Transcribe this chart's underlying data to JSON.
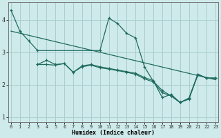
{
  "xlabel": "Humidex (Indice chaleur)",
  "background_color": "#ceeaea",
  "grid_color": "#aacece",
  "line_color": "#1e6b5e",
  "series": {
    "line1": {
      "x": [
        0,
        1,
        2,
        3,
        10,
        11,
        12,
        13,
        14,
        15,
        16,
        17,
        18,
        19,
        20,
        21,
        22,
        23
      ],
      "y": [
        4.3,
        3.65,
        3.35,
        3.05,
        3.05,
        4.05,
        3.88,
        3.58,
        3.44,
        2.55,
        2.1,
        1.82,
        1.65,
        1.45,
        1.58,
        2.32,
        2.2,
        2.2
      ]
    },
    "line2_straight": {
      "x": [
        0,
        23
      ],
      "y": [
        3.65,
        2.15
      ]
    },
    "line3_wavy": {
      "x": [
        3,
        4,
        5,
        6,
        7,
        8,
        9,
        10,
        11,
        12,
        13,
        14,
        15,
        16,
        17,
        18,
        19,
        20,
        21,
        22,
        23
      ],
      "y": [
        2.62,
        2.75,
        2.62,
        2.65,
        2.38,
        2.58,
        2.62,
        2.55,
        2.5,
        2.45,
        2.4,
        2.35,
        2.22,
        2.12,
        1.6,
        1.7,
        1.45,
        1.58,
        2.32,
        2.2,
        2.2
      ]
    },
    "line4_wavy": {
      "x": [
        3,
        4,
        5,
        6,
        7,
        8,
        9,
        10,
        11,
        12,
        13,
        14,
        15,
        16,
        17,
        18,
        19,
        20,
        21,
        22,
        23
      ],
      "y": [
        2.62,
        2.62,
        2.6,
        2.65,
        2.38,
        2.55,
        2.6,
        2.52,
        2.48,
        2.43,
        2.38,
        2.32,
        2.18,
        2.08,
        1.75,
        1.65,
        1.45,
        1.55,
        2.3,
        2.2,
        2.2
      ]
    }
  },
  "ylim": [
    0.85,
    4.55
  ],
  "xlim": [
    -0.3,
    23.3
  ],
  "yticks": [
    1,
    2,
    3,
    4
  ],
  "xticks": [
    0,
    1,
    2,
    3,
    4,
    5,
    6,
    7,
    8,
    9,
    10,
    11,
    12,
    13,
    14,
    15,
    16,
    17,
    18,
    19,
    20,
    21,
    22,
    23
  ]
}
